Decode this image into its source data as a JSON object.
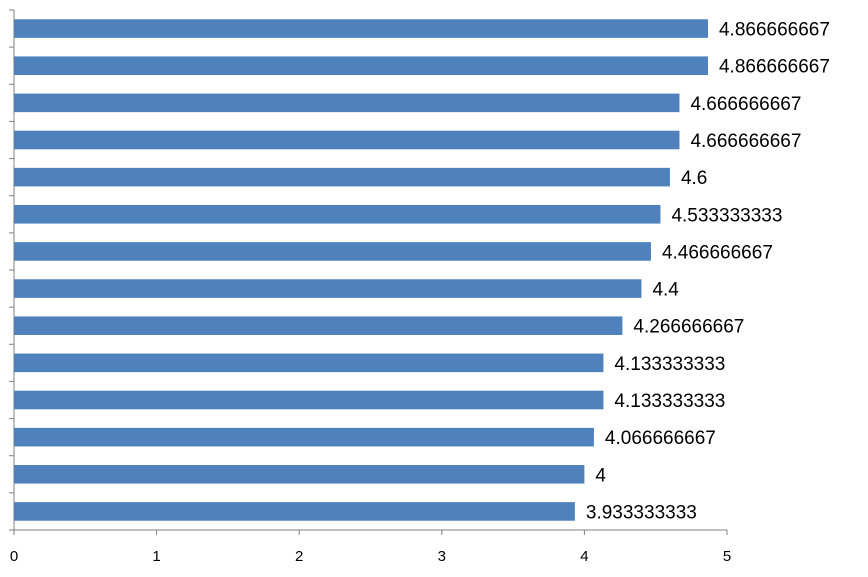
{
  "chart_data": {
    "type": "bar",
    "orientation": "horizontal",
    "values": [
      4.866666667,
      4.866666667,
      4.666666667,
      4.666666667,
      4.6,
      4.533333333,
      4.466666667,
      4.4,
      4.266666667,
      4.133333333,
      4.133333333,
      4.066666667,
      4,
      3.933333333
    ],
    "data_labels": [
      "4.866666667",
      "4.866666667",
      "4.666666667",
      "4.666666667",
      "4.6",
      "4.533333333",
      "4.466666667",
      "4.4",
      "4.266666667",
      "4.133333333",
      "4.133333333",
      "4.066666667",
      "4",
      "3.933333333"
    ],
    "xlim": [
      0,
      5
    ],
    "x_ticks": [
      0,
      1,
      2,
      3,
      4,
      5
    ],
    "x_tick_labels": [
      "0",
      "1",
      "2",
      "3",
      "4",
      "5"
    ],
    "grid": false,
    "legend": "none",
    "bar_color": "#4F81BD"
  }
}
